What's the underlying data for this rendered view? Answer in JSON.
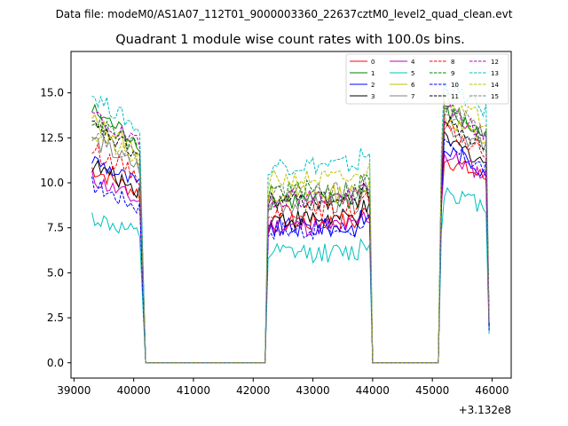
{
  "chart_data": {
    "type": "line",
    "suptitle": "Data file: modeM0/AS1A07_112T01_9000003360_22637cztM0_level2_quad_clean.evt",
    "title": "Quadrant 1 module wise count rates with 100.0s bins.",
    "xlabel": "",
    "ylabel": "",
    "x_offset_label": "+3.132e8",
    "xlim": [
      38950,
      46320
    ],
    "ylim": [
      -0.85,
      17.3
    ],
    "xticks": [
      39000,
      40000,
      41000,
      42000,
      43000,
      44000,
      45000,
      46000
    ],
    "xtick_labels": [
      "39000",
      "40000",
      "41000",
      "42000",
      "43000",
      "44000",
      "45000",
      "46000"
    ],
    "yticks": [
      0.0,
      2.5,
      5.0,
      7.5,
      10.0,
      12.5,
      15.0
    ],
    "ytick_labels": [
      "0.0",
      "2.5",
      "5.0",
      "7.5",
      "10.0",
      "12.5",
      "15.0"
    ],
    "grid": false,
    "legend_position": "top-right",
    "segments": [
      {
        "start": 39300,
        "end": 40200,
        "step": 50
      },
      {
        "start": 40200,
        "end": 42200,
        "step": 2000
      },
      {
        "start": 42200,
        "end": 44000,
        "step": 50
      },
      {
        "start": 44000,
        "end": 45100,
        "step": 1100
      },
      {
        "start": 45100,
        "end": 45950,
        "step": 50
      }
    ],
    "series": [
      {
        "name": "0",
        "color": "#ff0000",
        "dash": false,
        "level1": 10.0,
        "level2": 7.8,
        "level3": 11.0,
        "end": 1.9
      },
      {
        "name": "1",
        "color": "#008000",
        "dash": false,
        "level1": 13.0,
        "level2": 9.0,
        "level3": 13.5,
        "end": 2.2
      },
      {
        "name": "2",
        "color": "#0000ff",
        "dash": false,
        "level1": 10.5,
        "level2": 7.5,
        "level3": 11.5,
        "end": 1.8
      },
      {
        "name": "3",
        "color": "#000000",
        "dash": false,
        "level1": 10.2,
        "level2": 8.0,
        "level3": 12.0,
        "end": 2.0
      },
      {
        "name": "4",
        "color": "#bf00bf",
        "dash": false,
        "level1": 9.5,
        "level2": 7.6,
        "level3": 11.2,
        "end": 1.9
      },
      {
        "name": "5",
        "color": "#00bfbf",
        "dash": false,
        "level1": 7.5,
        "level2": 6.1,
        "level3": 9.3,
        "end": 1.6
      },
      {
        "name": "6",
        "color": "#bfbf00",
        "dash": false,
        "level1": 12.5,
        "level2": 9.4,
        "level3": 13.2,
        "end": 2.2
      },
      {
        "name": "7",
        "color": "#808080",
        "dash": false,
        "level1": 11.5,
        "level2": 8.8,
        "level3": 12.8,
        "end": 2.1
      },
      {
        "name": "8",
        "color": "#ff0000",
        "dash": true,
        "level1": 11.0,
        "level2": 8.5,
        "level3": 12.5,
        "end": 2.0
      },
      {
        "name": "9",
        "color": "#008000",
        "dash": true,
        "level1": 12.6,
        "level2": 9.6,
        "level3": 13.8,
        "end": 2.3
      },
      {
        "name": "10",
        "color": "#0000ff",
        "dash": true,
        "level1": 9.2,
        "level2": 7.4,
        "level3": 11.6,
        "end": 1.8
      },
      {
        "name": "11",
        "color": "#000000",
        "dash": true,
        "level1": 12.2,
        "level2": 9.0,
        "level3": 13.0,
        "end": 2.1
      },
      {
        "name": "12",
        "color": "#bf00bf",
        "dash": true,
        "level1": 12.8,
        "level2": 9.2,
        "level3": 13.6,
        "end": 2.2
      },
      {
        "name": "13",
        "color": "#00bfbf",
        "dash": true,
        "level1": 13.8,
        "level2": 11.0,
        "level3": 15.0,
        "end": 2.4
      },
      {
        "name": "14",
        "color": "#bfbf00",
        "dash": true,
        "level1": 11.8,
        "level2": 10.2,
        "level3": 14.4,
        "end": 2.3
      },
      {
        "name": "15",
        "color": "#808080",
        "dash": true,
        "level1": 12.0,
        "level2": 9.5,
        "level3": 13.8,
        "end": 2.2
      }
    ]
  }
}
